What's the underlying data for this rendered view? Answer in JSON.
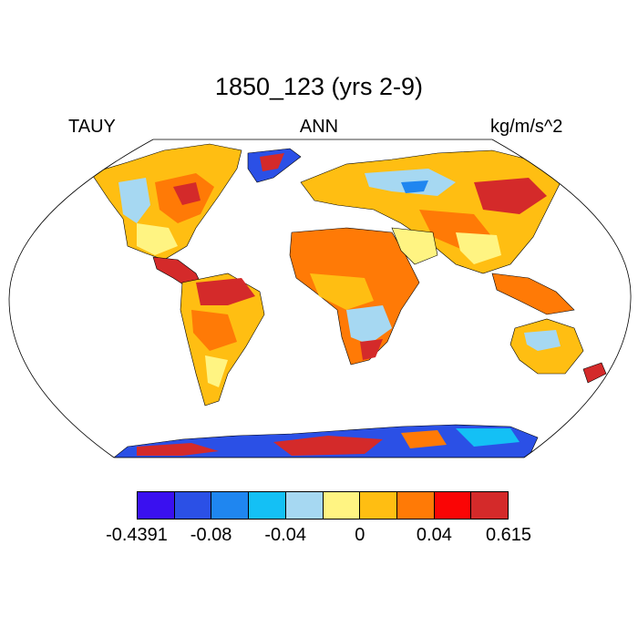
{
  "title": "1850_123 (yrs 2-9)",
  "left_label": "TAUY",
  "center_label": "ANN",
  "right_label": "kg/m/s^2",
  "map": {
    "projection": "robinson",
    "variable": "TAUY",
    "ocean_color": "#ffffff",
    "outline_color": "#000000"
  },
  "legend": {
    "colors": [
      "#3a10f0",
      "#2b50e6",
      "#1f86f0",
      "#14c0f5",
      "#a6d8f2",
      "#fff482",
      "#ffbe12",
      "#ff7a06",
      "#fa0505",
      "#d42a2a"
    ],
    "tick_labels": [
      "-0.4391",
      "-0.08",
      "-0.04",
      "0",
      "0.04",
      "0.615"
    ]
  }
}
